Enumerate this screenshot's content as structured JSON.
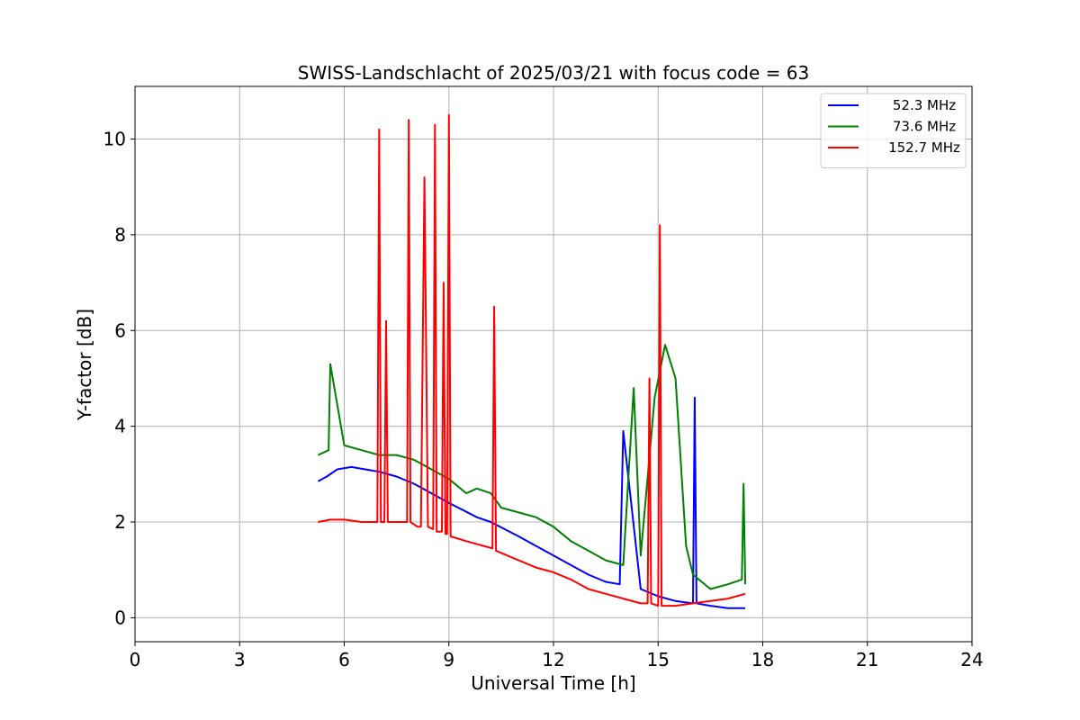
{
  "chart_data": {
    "type": "line",
    "title": "SWISS-Landschlacht of 2025/03/21 with focus code = 63",
    "xlabel": "Universal Time [h]",
    "ylabel": "Y-factor [dB]",
    "xlim": [
      0,
      24
    ],
    "ylim": [
      -0.5,
      11.1
    ],
    "xticks": [
      0,
      3,
      6,
      9,
      12,
      15,
      18,
      21,
      24
    ],
    "yticks": [
      0,
      2,
      4,
      6,
      8,
      10
    ],
    "grid": true,
    "legend_position": "top-right",
    "series": [
      {
        "name": "52.3 MHz",
        "color": "#0000ff",
        "x": [
          5.25,
          5.5,
          5.8,
          6.2,
          6.6,
          7.0,
          7.5,
          8.0,
          8.5,
          9.0,
          9.4,
          9.8,
          10.2,
          10.6,
          11.0,
          11.5,
          12.0,
          12.5,
          13.0,
          13.5,
          13.9,
          14.0,
          14.5,
          15.0,
          15.5,
          16.0,
          16.05,
          16.1,
          16.5,
          17.0,
          17.5
        ],
        "y": [
          2.85,
          2.95,
          3.1,
          3.15,
          3.1,
          3.05,
          2.95,
          2.8,
          2.6,
          2.4,
          2.25,
          2.1,
          2.0,
          1.85,
          1.7,
          1.5,
          1.3,
          1.1,
          0.9,
          0.75,
          0.7,
          3.9,
          0.6,
          0.45,
          0.35,
          0.3,
          4.6,
          0.3,
          0.25,
          0.2,
          0.2
        ]
      },
      {
        "name": "73.6 MHz",
        "color": "#008000",
        "x": [
          5.25,
          5.55,
          5.6,
          6.0,
          6.5,
          7.0,
          7.5,
          8.0,
          8.5,
          9.0,
          9.5,
          9.8,
          10.2,
          10.5,
          11.0,
          11.5,
          12.0,
          12.5,
          13.0,
          13.5,
          14.0,
          14.3,
          14.5,
          14.9,
          15.2,
          15.5,
          15.8,
          16.0,
          16.5,
          17.0,
          17.4,
          17.45,
          17.5
        ],
        "y": [
          3.4,
          3.5,
          5.3,
          3.6,
          3.5,
          3.4,
          3.4,
          3.3,
          3.1,
          2.9,
          2.6,
          2.7,
          2.6,
          2.3,
          2.2,
          2.1,
          1.9,
          1.6,
          1.4,
          1.2,
          1.1,
          4.8,
          1.3,
          4.6,
          5.7,
          5.0,
          1.5,
          0.9,
          0.6,
          0.7,
          0.8,
          2.8,
          0.7
        ]
      },
      {
        "name": "152.7 MHz",
        "color": "#ff0000",
        "x": [
          5.25,
          5.6,
          6.0,
          6.5,
          6.95,
          7.0,
          7.05,
          7.15,
          7.2,
          7.25,
          7.6,
          7.8,
          7.85,
          7.9,
          8.1,
          8.2,
          8.3,
          8.4,
          8.55,
          8.6,
          8.65,
          8.8,
          8.85,
          8.9,
          8.95,
          9.0,
          9.05,
          9.5,
          10.0,
          10.25,
          10.3,
          10.35,
          11.0,
          11.5,
          12.0,
          12.5,
          13.0,
          13.5,
          14.0,
          14.5,
          14.7,
          14.75,
          14.8,
          15.0,
          15.05,
          15.1,
          15.5,
          16.0,
          16.5,
          17.0,
          17.5
        ],
        "y": [
          2.0,
          2.05,
          2.05,
          2.0,
          2.0,
          10.2,
          2.0,
          2.0,
          6.2,
          2.0,
          2.0,
          2.0,
          10.4,
          2.0,
          1.9,
          1.9,
          9.2,
          1.9,
          1.85,
          10.3,
          1.8,
          1.8,
          7.0,
          1.75,
          1.75,
          10.5,
          1.7,
          1.6,
          1.5,
          1.45,
          6.5,
          1.4,
          1.2,
          1.05,
          0.95,
          0.8,
          0.6,
          0.5,
          0.4,
          0.3,
          0.3,
          5.0,
          0.3,
          0.25,
          8.2,
          0.25,
          0.25,
          0.3,
          0.35,
          0.4,
          0.5
        ]
      }
    ]
  }
}
